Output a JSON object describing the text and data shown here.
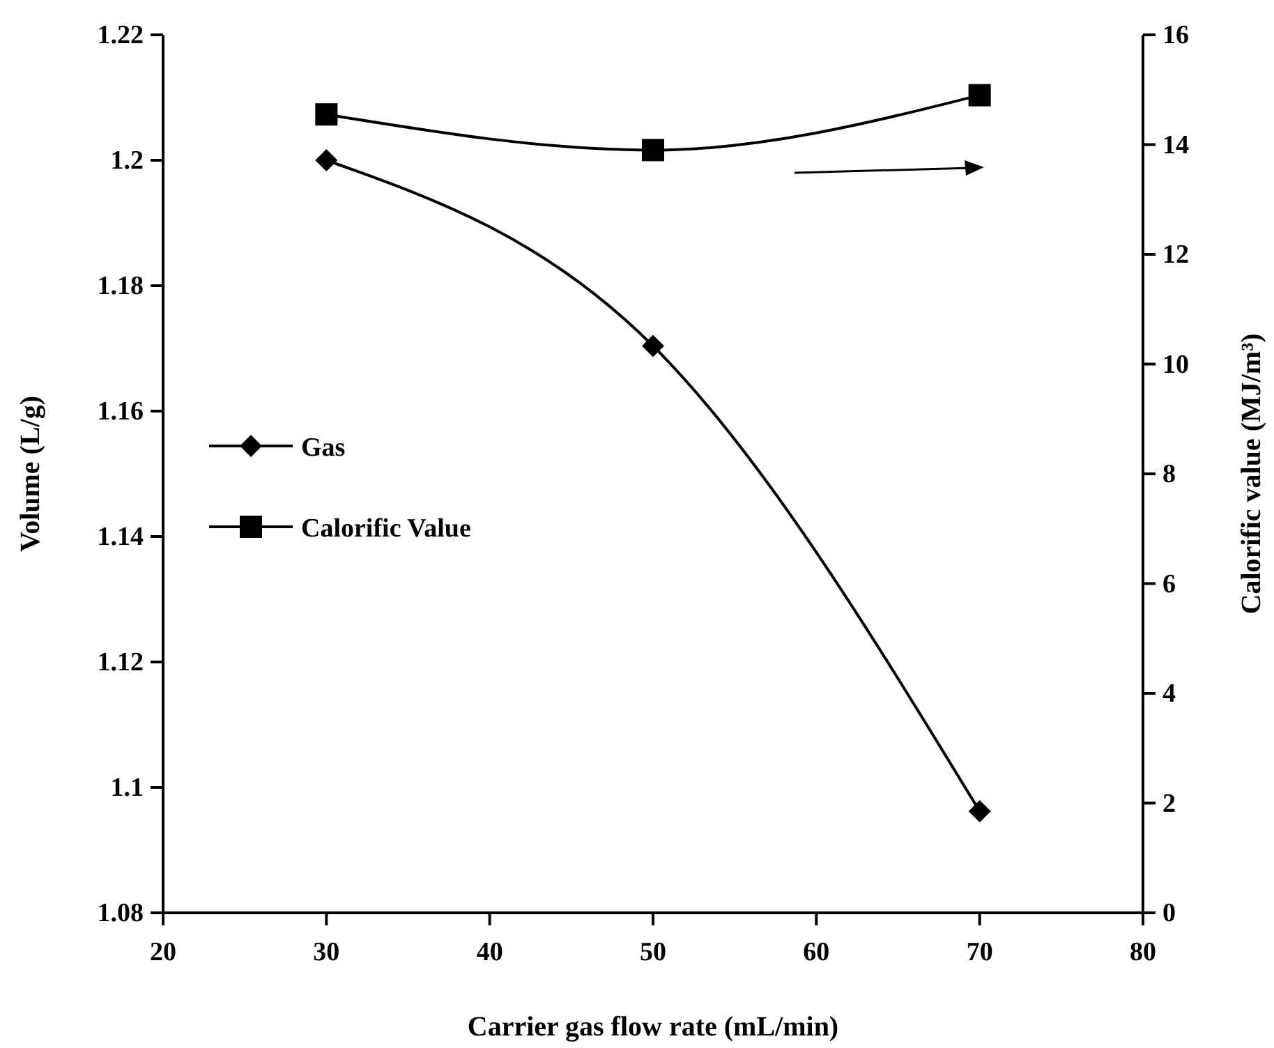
{
  "chart_data": {
    "type": "line",
    "xlabel": "Carrier gas flow rate (mL/min)",
    "ylabel": "Volume (L/g)",
    "y2label": "Calorific value (MJ/m³)",
    "x": [
      30,
      50,
      70
    ],
    "series": [
      {
        "name": "Gas",
        "color": "#000000",
        "values": [
          1.2,
          1.1704,
          1.0962
        ],
        "marker": "diamond"
      },
      {
        "name": "Calorific Value",
        "color": "#000000",
        "values": [
          14.55,
          13.9,
          14.9
        ],
        "marker": "square",
        "axis": "y2"
      }
    ],
    "xlim": [
      20,
      80
    ],
    "xticks": [
      20,
      30,
      40,
      50,
      60,
      70,
      80
    ],
    "ylim": [
      1.08,
      1.22
    ],
    "yticks": [
      1.08,
      1.1,
      1.12,
      1.14,
      1.16,
      1.18,
      1.2,
      1.22
    ],
    "y2lim": [
      0,
      16
    ],
    "y2ticks": [
      0,
      2,
      4,
      6,
      8,
      10,
      12,
      14,
      16
    ],
    "grid": false,
    "legend": "left",
    "line_style": "solid"
  }
}
